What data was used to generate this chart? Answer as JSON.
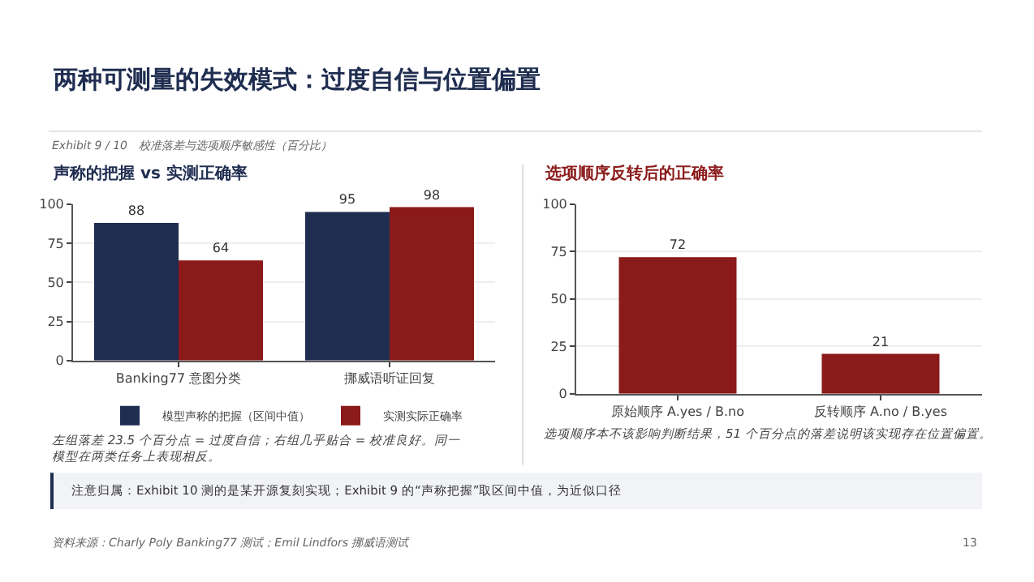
{
  "chart_data": [
    {
      "type": "bar",
      "title": "声称的把握 vs 实测正确率",
      "categories": [
        "Banking77 意图分类",
        "挪威语听证回复"
      ],
      "series": [
        {
          "name": "模型声称的把握（区间中值）",
          "color": "#1f2d50",
          "values": [
            88,
            95
          ]
        },
        {
          "name": "实测实际正确率",
          "color": "#8b1a1a",
          "values": [
            64,
            98
          ]
        }
      ],
      "ylim": [
        0,
        100
      ],
      "yticks": [
        0,
        25,
        50,
        75,
        100
      ],
      "grid": "y",
      "legend": "bottom",
      "data_labels": true,
      "annotations": [
        "两种可测量的失效模式：过度自信与位置偏置",
        "Exhibit 9 / 10　校准落差与选项顺序敏感性（百分比）",
        "左组落差 23.5 个百分点 = 过度自信；右组几乎贴合 = 校准良好。同一模型在两类任务上表现相反。",
        "注意归属：Exhibit 10 测的是某开源复刻实现；Exhibit 9 的“声称把握”取区间中值，为近似口径",
        "资料来源：Charly Poly Banking77 测试；Emil Lindfors 挪威语测试"
      ]
    },
    {
      "type": "bar",
      "title": "选项顺序反转后的正确率",
      "categories": [
        "原始顺序 A.yes / B.no",
        "反转顺序 A.no / B.yes"
      ],
      "values": [
        72,
        21
      ],
      "color": "#8b1a1a",
      "ylim": [
        0,
        100
      ],
      "yticks": [
        0,
        25,
        50,
        75,
        100
      ],
      "grid": "y",
      "data_labels": true,
      "annotations": [
        "选项顺序本不该影响判断结果，51 个百分点的落差说明该实现存在位置偏置。",
        "13"
      ]
    }
  ]
}
